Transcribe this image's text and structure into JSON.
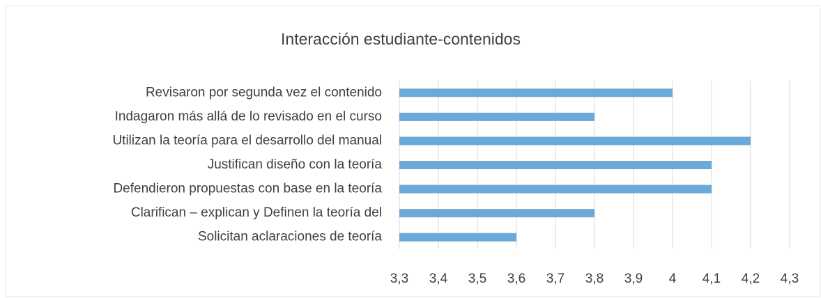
{
  "chart_data": {
    "type": "barh",
    "title": "Interacción estudiante-contenidos",
    "categories": [
      "Revisaron por segunda vez el contenido",
      "Indagaron más allá de lo revisado en el curso",
      "Utilizan la teoría para el desarrollo del manual",
      "Justifican diseño con la teoría",
      "Defendieron propuestas con base en la teoría",
      "Clarifican – explican y Definen la teoría del",
      "Solicitan aclaraciones de teoría"
    ],
    "values": [
      4.0,
      3.8,
      4.2,
      4.1,
      4.1,
      3.8,
      3.6
    ],
    "color": "#6aa9d8",
    "xlim": [
      3.3,
      4.3
    ],
    "xticks": [
      {
        "value": 3.3,
        "label": "3,3"
      },
      {
        "value": 3.4,
        "label": "3,4"
      },
      {
        "value": 3.5,
        "label": "3,5"
      },
      {
        "value": 3.6,
        "label": "3,6"
      },
      {
        "value": 3.7,
        "label": "3,7"
      },
      {
        "value": 3.8,
        "label": "3,8"
      },
      {
        "value": 3.9,
        "label": "3,9"
      },
      4,
      {
        "value": 4.1,
        "label": "4,1"
      },
      {
        "value": 4.2,
        "label": "4,2"
      },
      {
        "value": 4.3,
        "label": "4,3"
      }
    ],
    "grid": true
  }
}
